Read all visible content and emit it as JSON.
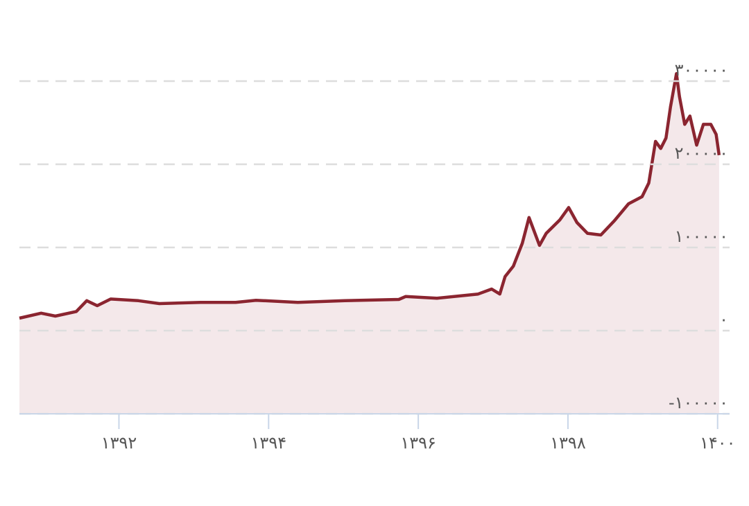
{
  "chart_data": {
    "type": "area",
    "x": [
      1390.67,
      1390.96,
      1391.15,
      1391.43,
      1391.57,
      1391.71,
      1391.89,
      1392.26,
      1392.54,
      1393.09,
      1393.56,
      1393.83,
      1394.39,
      1395.02,
      1395.74,
      1395.83,
      1396.25,
      1396.8,
      1396.98,
      1397.09,
      1397.16,
      1397.27,
      1397.39,
      1397.48,
      1397.62,
      1397.71,
      1397.89,
      1398.01,
      1398.12,
      1398.26,
      1398.44,
      1398.62,
      1398.81,
      1398.99,
      1399.08,
      1399.17,
      1399.24,
      1399.31,
      1399.37,
      1399.45,
      1399.49,
      1399.56,
      1399.63,
      1399.72,
      1399.81,
      1399.91,
      1399.98,
      1400.02
    ],
    "series": [
      {
        "color": "#8b2530",
        "fill": "#f4e8ea",
        "values": [
          15000,
          21000,
          17500,
          23000,
          36000,
          30000,
          38000,
          36000,
          32500,
          34000,
          34000,
          36500,
          34000,
          36000,
          37500,
          41000,
          39000,
          44000,
          50000,
          44000,
          65000,
          77500,
          105000,
          136000,
          102500,
          117000,
          133000,
          148000,
          130000,
          117000,
          115000,
          132000,
          152500,
          161000,
          177500,
          227500,
          219000,
          231500,
          269000,
          309000,
          281500,
          248000,
          258000,
          223000,
          248000,
          248000,
          236000,
          211000
        ]
      }
    ],
    "xlim": [
      1390.67,
      1400.16
    ],
    "ylim": [
      -100000,
      320000
    ],
    "xticks": [
      {
        "value": 1392,
        "label": "۱۳۹۲"
      },
      {
        "value": 1394,
        "label": "۱۳۹۴"
      },
      {
        "value": 1396,
        "label": "۱۳۹۶"
      },
      {
        "value": 1398,
        "label": "۱۳۹۸"
      },
      {
        "value": 1400,
        "label": "۱۴۰۰"
      }
    ],
    "yticks": [
      {
        "value": -100000,
        "label": "-۱۰۰۰۰۰"
      },
      {
        "value": 0,
        "label": "۰"
      },
      {
        "value": 100000,
        "label": "۱۰۰۰۰۰"
      },
      {
        "value": 200000,
        "label": "۲۰۰۰۰۰"
      },
      {
        "value": 300000,
        "label": "۳۰۰۰۰۰"
      }
    ],
    "grid": true
  }
}
